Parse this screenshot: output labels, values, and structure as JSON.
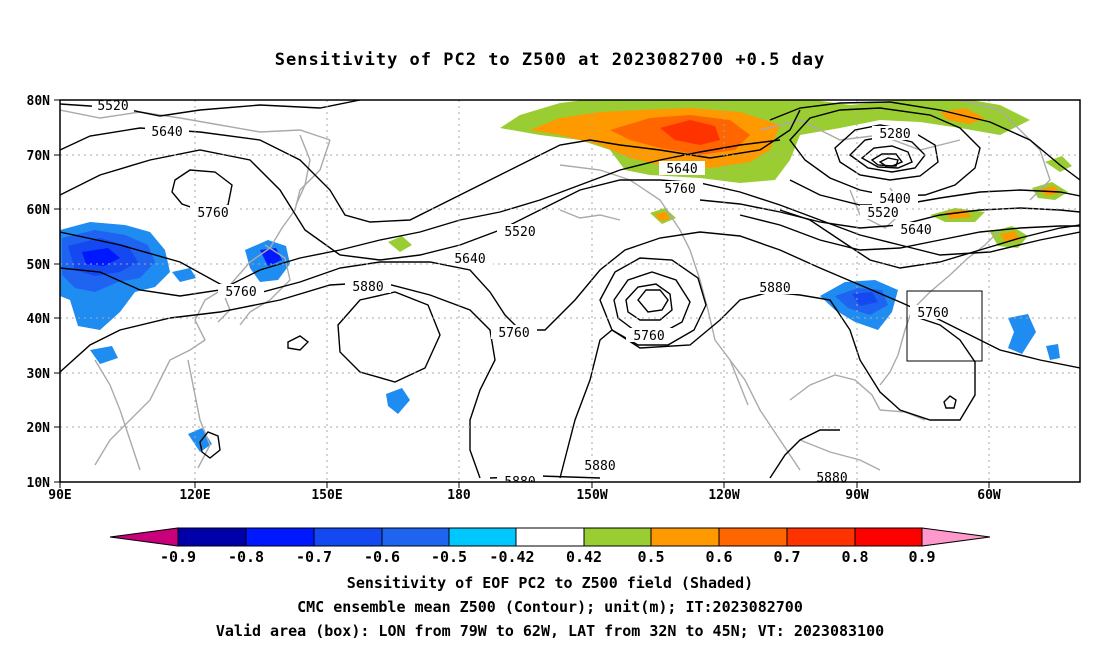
{
  "title": "Sensitivity of PC2 to Z500 at 2023082700 +0.5 day",
  "lat_labels": [
    "80N",
    "70N",
    "60N",
    "50N",
    "40N",
    "30N",
    "20N",
    "10N"
  ],
  "lon_labels": [
    "90E",
    "120E",
    "150E",
    "180",
    "150W",
    "120W",
    "90W",
    "60W"
  ],
  "contour_labels": {
    "c5520_top": "5520",
    "c5640_nw": "5640",
    "c5760_nw": "5760",
    "c5760_japan": "5760",
    "c5880_pac": "5880",
    "c5640_pac": "5640",
    "c5520_pac": "5520",
    "c5760_pac": "5760",
    "c5760_low": "5760",
    "c5640_ak": "5640",
    "c5760_ak": "5760",
    "c5880_us": "5880",
    "c5280": "5280",
    "c5400": "5400",
    "c5520_east": "5520",
    "c5640_east": "5640",
    "c5760_box": "5760",
    "c5880_s1": "5880",
    "c5880_s2": "5880",
    "c5880_s3": "5880"
  },
  "colorbar": {
    "labels": [
      "-0.9",
      "-0.8",
      "-0.7",
      "-0.6",
      "-0.5",
      "-0.42",
      "0.42",
      "0.5",
      "0.6",
      "0.7",
      "0.8",
      "0.9"
    ],
    "colors": [
      "#c8007c",
      "#0000aa",
      "#0018ff",
      "#1448f0",
      "#1e64f0",
      "#1e8cf0",
      "#00c8ff",
      "#ffffff",
      "#9acd32",
      "#ff9900",
      "#ff6600",
      "#ff3300",
      "#ff0000",
      "#ff99cc"
    ],
    "labels_text": {
      "l0": "-0.9",
      "l1": "-0.8",
      "l2": "-0.7",
      "l3": "-0.6",
      "l4": "-0.5",
      "l5": "-0.42",
      "l6": "0.42",
      "l7": "0.5",
      "l8": "0.6",
      "l9": "0.7",
      "l10": "0.8",
      "l11": "0.9"
    }
  },
  "captions": {
    "line1": "Sensitivity of EOF PC2 to Z500 field (Shaded)",
    "line2": "CMC ensemble mean Z500 (Contour); unit(m); IT:2023082700",
    "line3": "Valid area (box): LON from 79W to 62W, LAT from 32N to 45N; VT: 2023083100"
  }
}
